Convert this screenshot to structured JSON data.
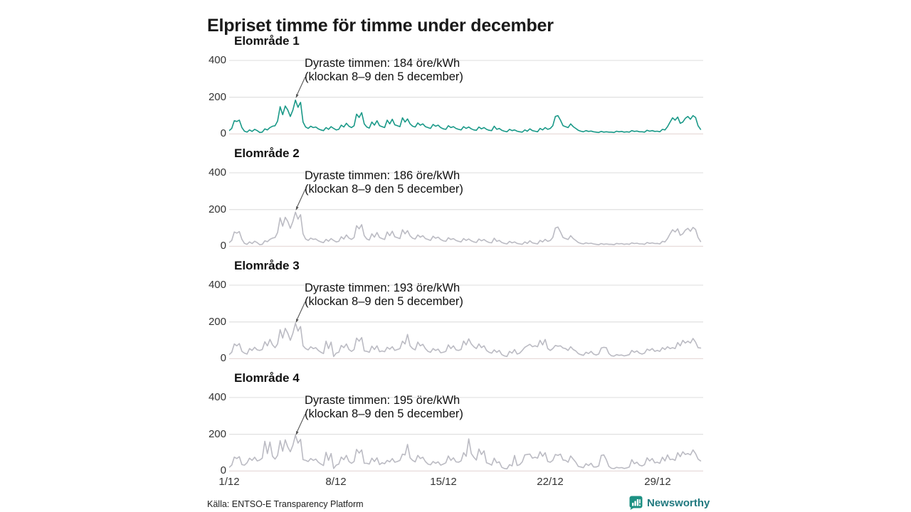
{
  "title": "Elpriset timme för timme under december",
  "footer": {
    "source": "Källa: ENTSO-E Transparency Platform",
    "brand": "Newsworthy"
  },
  "colors": {
    "accent_teal": "#1a9988",
    "series_gray": "#bbbbc3",
    "gridline": "#e3e3e3",
    "zero_line": "#e8dbda",
    "brand_teal": "#1d9183"
  },
  "chart_data": {
    "type": "line",
    "unit": "öre/kWh",
    "x_axis": {
      "tick_labels": [
        "1/12",
        "8/12",
        "15/12",
        "22/12",
        "29/12"
      ],
      "tick_days": [
        1,
        8,
        15,
        22,
        29
      ],
      "range_days": [
        1,
        31
      ],
      "points_per_day": 6,
      "hours_step": 4
    },
    "y_axis": {
      "tick_labels": [
        "400",
        "200",
        "0"
      ],
      "ticks": [
        400,
        200,
        0
      ],
      "ylim": [
        0,
        400
      ]
    },
    "grid": true,
    "legend": "none",
    "panels": [
      {
        "title": "Elområde 1",
        "annotation": {
          "line1": "Dyraste timmen: 184 öre/kWh",
          "line2": "(klockan 8–9 den 5 december)"
        },
        "peak": {
          "value": 184,
          "hours": "8–9",
          "date": "5 december"
        },
        "line_color": "#1a9988",
        "values": [
          18,
          30,
          72,
          68,
          75,
          35,
          15,
          10,
          22,
          14,
          25,
          18,
          8,
          10,
          28,
          22,
          35,
          42,
          45,
          70,
          148,
          105,
          152,
          130,
          95,
          130,
          184,
          145,
          172,
          65,
          38,
          30,
          42,
          35,
          38,
          28,
          22,
          18,
          35,
          25,
          40,
          30,
          22,
          25,
          48,
          38,
          58,
          42,
          35,
          45,
          108,
          90,
          116,
          55,
          38,
          32,
          65,
          48,
          72,
          45,
          40,
          35,
          75,
          55,
          80,
          50,
          45,
          40,
          88,
          65,
          82,
          55,
          42,
          38,
          60,
          48,
          55,
          40,
          35,
          30,
          52,
          42,
          48,
          35,
          28,
          25,
          45,
          35,
          40,
          30,
          25,
          22,
          40,
          30,
          38,
          28,
          22,
          20,
          38,
          28,
          35,
          25,
          20,
          18,
          42,
          25,
          30,
          20,
          15,
          12,
          25,
          18,
          22,
          15,
          12,
          10,
          22,
          15,
          28,
          18,
          15,
          12,
          30,
          22,
          35,
          25,
          30,
          45,
          95,
          100,
          75,
          45,
          40,
          35,
          55,
          40,
          30,
          20,
          15,
          12,
          18,
          14,
          16,
          12,
          10,
          8,
          14,
          10,
          12,
          10,
          10,
          8,
          15,
          12,
          14,
          10,
          12,
          10,
          18,
          14,
          16,
          12,
          12,
          10,
          20,
          15,
          18,
          14,
          15,
          12,
          25,
          22,
          40,
          65,
          88,
          75,
          92,
          58,
          65,
          85,
          95,
          80,
          100,
          90,
          45,
          25
        ]
      },
      {
        "title": "Elområde 2",
        "annotation": {
          "line1": "Dyraste timmen: 186 öre/kWh",
          "line2": "(klockan 8–9 den 5 december)"
        },
        "peak": {
          "value": 186,
          "hours": "8–9",
          "date": "5 december"
        },
        "line_color": "#bbbbc3",
        "values": [
          20,
          32,
          78,
          72,
          80,
          38,
          16,
          11,
          24,
          15,
          28,
          20,
          9,
          11,
          30,
          25,
          38,
          45,
          48,
          75,
          155,
          110,
          158,
          135,
          98,
          135,
          186,
          148,
          172,
          68,
          40,
          32,
          45,
          38,
          40,
          30,
          24,
          20,
          38,
          28,
          42,
          32,
          24,
          27,
          52,
          40,
          62,
          45,
          38,
          48,
          112,
          95,
          118,
          58,
          40,
          34,
          68,
          50,
          75,
          48,
          42,
          37,
          78,
          58,
          82,
          52,
          47,
          42,
          90,
          68,
          85,
          57,
          44,
          40,
          62,
          50,
          58,
          42,
          37,
          32,
          55,
          44,
          50,
          37,
          30,
          27,
          47,
          37,
          42,
          32,
          27,
          24,
          42,
          32,
          40,
          30,
          24,
          21,
          40,
          30,
          37,
          27,
          21,
          19,
          44,
          27,
          32,
          21,
          16,
          13,
          27,
          19,
          24,
          16,
          13,
          11,
          24,
          16,
          30,
          19,
          16,
          13,
          32,
          24,
          38,
          27,
          32,
          48,
          100,
          105,
          78,
          48,
          42,
          37,
          58,
          42,
          32,
          21,
          16,
          13,
          19,
          15,
          17,
          13,
          11,
          9,
          15,
          11,
          13,
          11,
          11,
          9,
          16,
          13,
          15,
          11,
          13,
          11,
          19,
          15,
          17,
          13,
          13,
          11,
          21,
          16,
          19,
          15,
          16,
          13,
          27,
          24,
          42,
          68,
          90,
          78,
          95,
          60,
          68,
          88,
          98,
          82,
          103,
          92,
          48,
          26
        ]
      },
      {
        "title": "Elområde 3",
        "annotation": {
          "line1": "Dyraste timmen: 193 öre/kWh",
          "line2": "(klockan 8–9 den 5 december)"
        },
        "peak": {
          "value": 193,
          "hours": "8–9",
          "date": "5 december"
        },
        "line_color": "#bbbbc3",
        "values": [
          22,
          35,
          80,
          70,
          82,
          40,
          30,
          25,
          55,
          45,
          62,
          48,
          45,
          50,
          92,
          70,
          105,
          75,
          60,
          80,
          158,
          112,
          165,
          138,
          100,
          138,
          193,
          150,
          175,
          70,
          55,
          48,
          65,
          55,
          60,
          45,
          35,
          28,
          95,
          55,
          90,
          12,
          30,
          35,
          72,
          60,
          80,
          50,
          40,
          50,
          112,
          95,
          115,
          42,
          40,
          35,
          68,
          50,
          70,
          38,
          42,
          38,
          62,
          52,
          65,
          45,
          50,
          55,
          95,
          80,
          132,
          70,
          55,
          48,
          90,
          70,
          78,
          55,
          40,
          35,
          55,
          45,
          52,
          32,
          35,
          40,
          75,
          55,
          70,
          48,
          45,
          50,
          96,
          75,
          108,
          80,
          65,
          55,
          80,
          60,
          70,
          45,
          35,
          30,
          48,
          35,
          45,
          22,
          15,
          12,
          40,
          30,
          50,
          25,
          30,
          45,
          62,
          70,
          78,
          65,
          70,
          65,
          100,
          75,
          105,
          55,
          45,
          55,
          72,
          68,
          70,
          58,
          55,
          45,
          65,
          50,
          42,
          28,
          22,
          18,
          35,
          28,
          40,
          25,
          20,
          25,
          58,
          62,
          60,
          28,
          16,
          14,
          22,
          18,
          20,
          15,
          18,
          22,
          45,
          35,
          42,
          30,
          25,
          30,
          52,
          45,
          55,
          40,
          45,
          40,
          60,
          50,
          65,
          55,
          60,
          55,
          88,
          70,
          100,
          85,
          95,
          85,
          110,
          90,
          60,
          58
        ]
      },
      {
        "title": "Elområde 4",
        "annotation": {
          "line1": "Dyraste timmen: 195 öre/kWh",
          "line2": "(klockan 8–9 den 5 december)"
        },
        "peak": {
          "value": 195,
          "hours": "8–9",
          "date": "5 december"
        },
        "line_color": "#bbbbc3",
        "values": [
          20,
          32,
          76,
          68,
          78,
          35,
          32,
          45,
          70,
          58,
          75,
          55,
          60,
          70,
          162,
          95,
          158,
          80,
          65,
          85,
          165,
          108,
          170,
          130,
          105,
          140,
          195,
          152,
          172,
          62,
          58,
          52,
          68,
          58,
          65,
          48,
          38,
          30,
          102,
          58,
          95,
          14,
          32,
          38,
          76,
          62,
          85,
          52,
          42,
          52,
          118,
          98,
          115,
          42,
          42,
          38,
          70,
          52,
          72,
          35,
          45,
          40,
          58,
          50,
          68,
          48,
          52,
          58,
          92,
          88,
          145,
          72,
          58,
          50,
          85,
          68,
          75,
          52,
          38,
          34,
          52,
          42,
          50,
          32,
          38,
          45,
          82,
          58,
          72,
          50,
          48,
          55,
          100,
          80,
          175,
          95,
          75,
          60,
          120,
          90,
          110,
          45,
          40,
          32,
          70,
          45,
          50,
          20,
          14,
          12,
          35,
          28,
          85,
          30,
          35,
          50,
          88,
          90,
          92,
          70,
          75,
          70,
          105,
          80,
          100,
          52,
          48,
          58,
          90,
          85,
          92,
          60,
          58,
          48,
          82,
          65,
          48,
          25,
          22,
          18,
          40,
          30,
          42,
          22,
          22,
          28,
          85,
          88,
          62,
          25,
          15,
          13,
          20,
          17,
          19,
          14,
          17,
          22,
          62,
          40,
          48,
          32,
          28,
          35,
          72,
          55,
          68,
          45,
          48,
          42,
          75,
          55,
          88,
          62,
          65,
          58,
          100,
          78,
          105,
          90,
          95,
          88,
          115,
          95,
          65,
          55
        ]
      }
    ]
  }
}
